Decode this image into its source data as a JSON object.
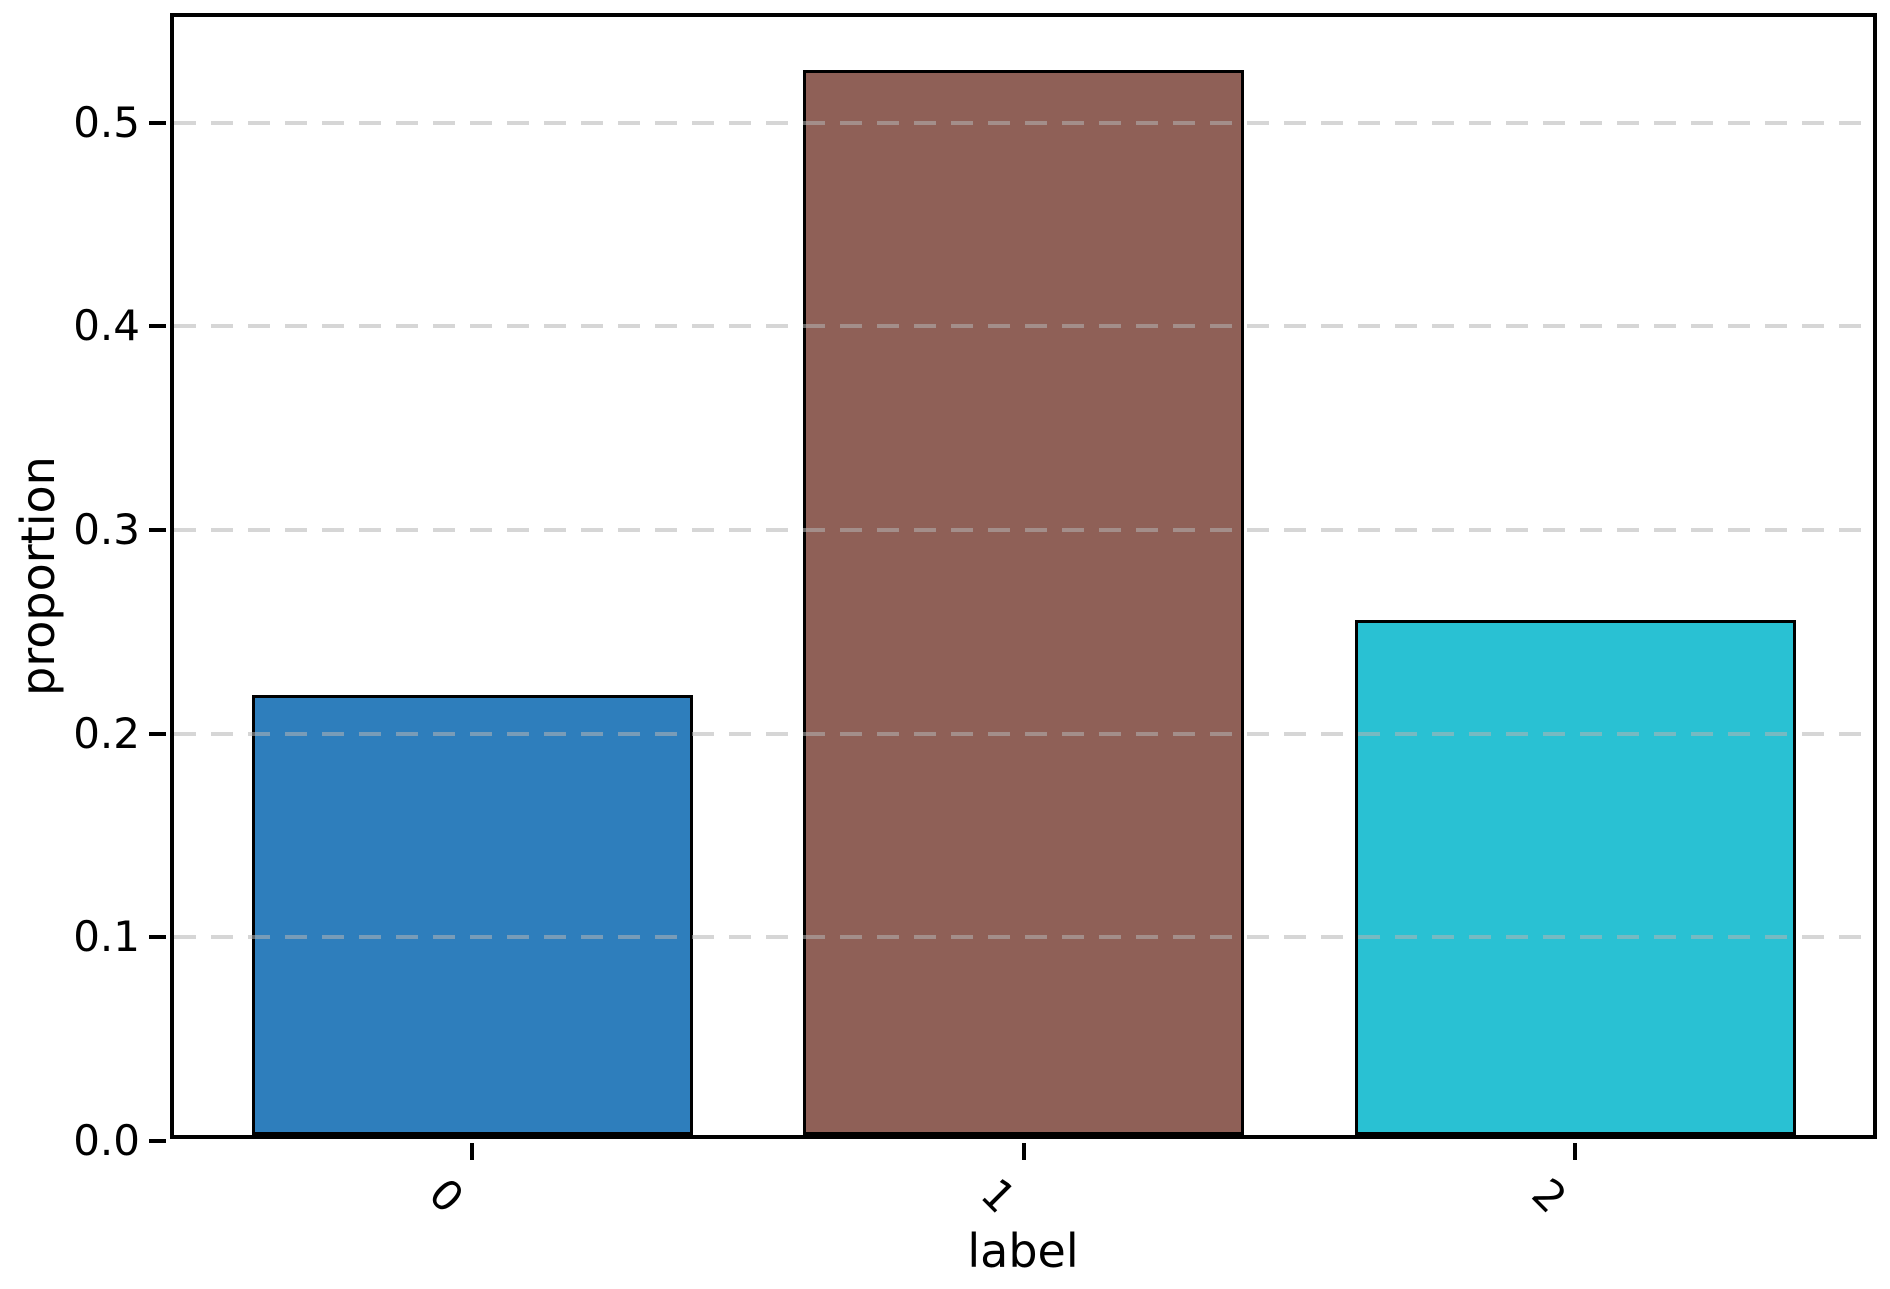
{
  "chart_data": {
    "type": "bar",
    "title": "",
    "xlabel": "label",
    "ylabel": "proportion",
    "categories": [
      "0",
      "1",
      "2"
    ],
    "values": [
      0.219,
      0.526,
      0.256
    ],
    "bar_colors": [
      "#2e7ebc",
      "#8f6057",
      "#29c1d3"
    ],
    "bar_edge_color": "#000000",
    "ylim": [
      0,
      0.553
    ],
    "yticks": [
      "0.0",
      "0.1",
      "0.2",
      "0.3",
      "0.4",
      "0.5"
    ],
    "ytick_values": [
      0,
      0.1,
      0.2,
      0.3,
      0.4,
      0.5
    ],
    "grid": "horizontal dashed, drawn above bars",
    "grid_color": "#b4b4b4",
    "xtick_rotation_deg": 45,
    "legend": "none",
    "background_color": "#ffffff",
    "spine_color": "#000000"
  }
}
